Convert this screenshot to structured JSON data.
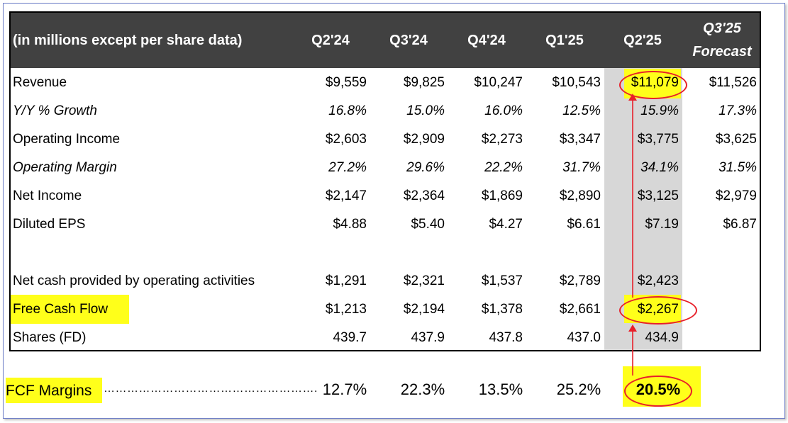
{
  "header": {
    "label": "(in millions except per share data)",
    "columns": [
      "Q2'24",
      "Q3'24",
      "Q4'24",
      "Q1'25",
      "Q2'25"
    ],
    "forecast_line1": "Q3'25",
    "forecast_line2": "Forecast"
  },
  "rows": [
    {
      "label": "Revenue",
      "values": [
        "$9,559",
        "$9,825",
        "$10,247",
        "$10,543",
        "$11,079",
        "$11,526"
      ]
    },
    {
      "label": "Y/Y % Growth",
      "values": [
        "16.8%",
        "15.0%",
        "16.0%",
        "12.5%",
        "15.9%",
        "17.3%"
      ]
    },
    {
      "label": "Operating Income",
      "values": [
        "$2,603",
        "$2,909",
        "$2,273",
        "$3,347",
        "$3,775",
        "$3,625"
      ]
    },
    {
      "label": "Operating Margin",
      "values": [
        "27.2%",
        "29.6%",
        "22.2%",
        "31.7%",
        "34.1%",
        "31.5%"
      ]
    },
    {
      "label": "Net Income",
      "values": [
        "$2,147",
        "$2,364",
        "$1,869",
        "$2,890",
        "$3,125",
        "$2,979"
      ]
    },
    {
      "label": "Diluted EPS",
      "values": [
        "$4.88",
        "$5.40",
        "$4.27",
        "$6.61",
        "$7.19",
        "$6.87"
      ]
    },
    {
      "label": "Net cash provided by operating activities",
      "values": [
        "$1,291",
        "$2,321",
        "$1,537",
        "$2,789",
        "$2,423",
        ""
      ]
    },
    {
      "label": "Free Cash Flow",
      "values": [
        "$1,213",
        "$2,194",
        "$1,378",
        "$2,661",
        "$2,267",
        ""
      ]
    },
    {
      "label": "Shares (FD)",
      "values": [
        "439.7",
        "437.9",
        "437.8",
        "437.0",
        "434.9",
        ""
      ]
    }
  ],
  "fcf_margins": {
    "label": "FCF Margins",
    "dots": "……………………………………………….",
    "values": [
      "12.7%",
      "22.3%",
      "13.5%",
      "25.2%",
      "20.5%"
    ]
  },
  "colors": {
    "header_bg": "#414141",
    "highlight": "#ffff1a",
    "annotation": "#e8202a",
    "column_shade": "#d7d7d7"
  }
}
